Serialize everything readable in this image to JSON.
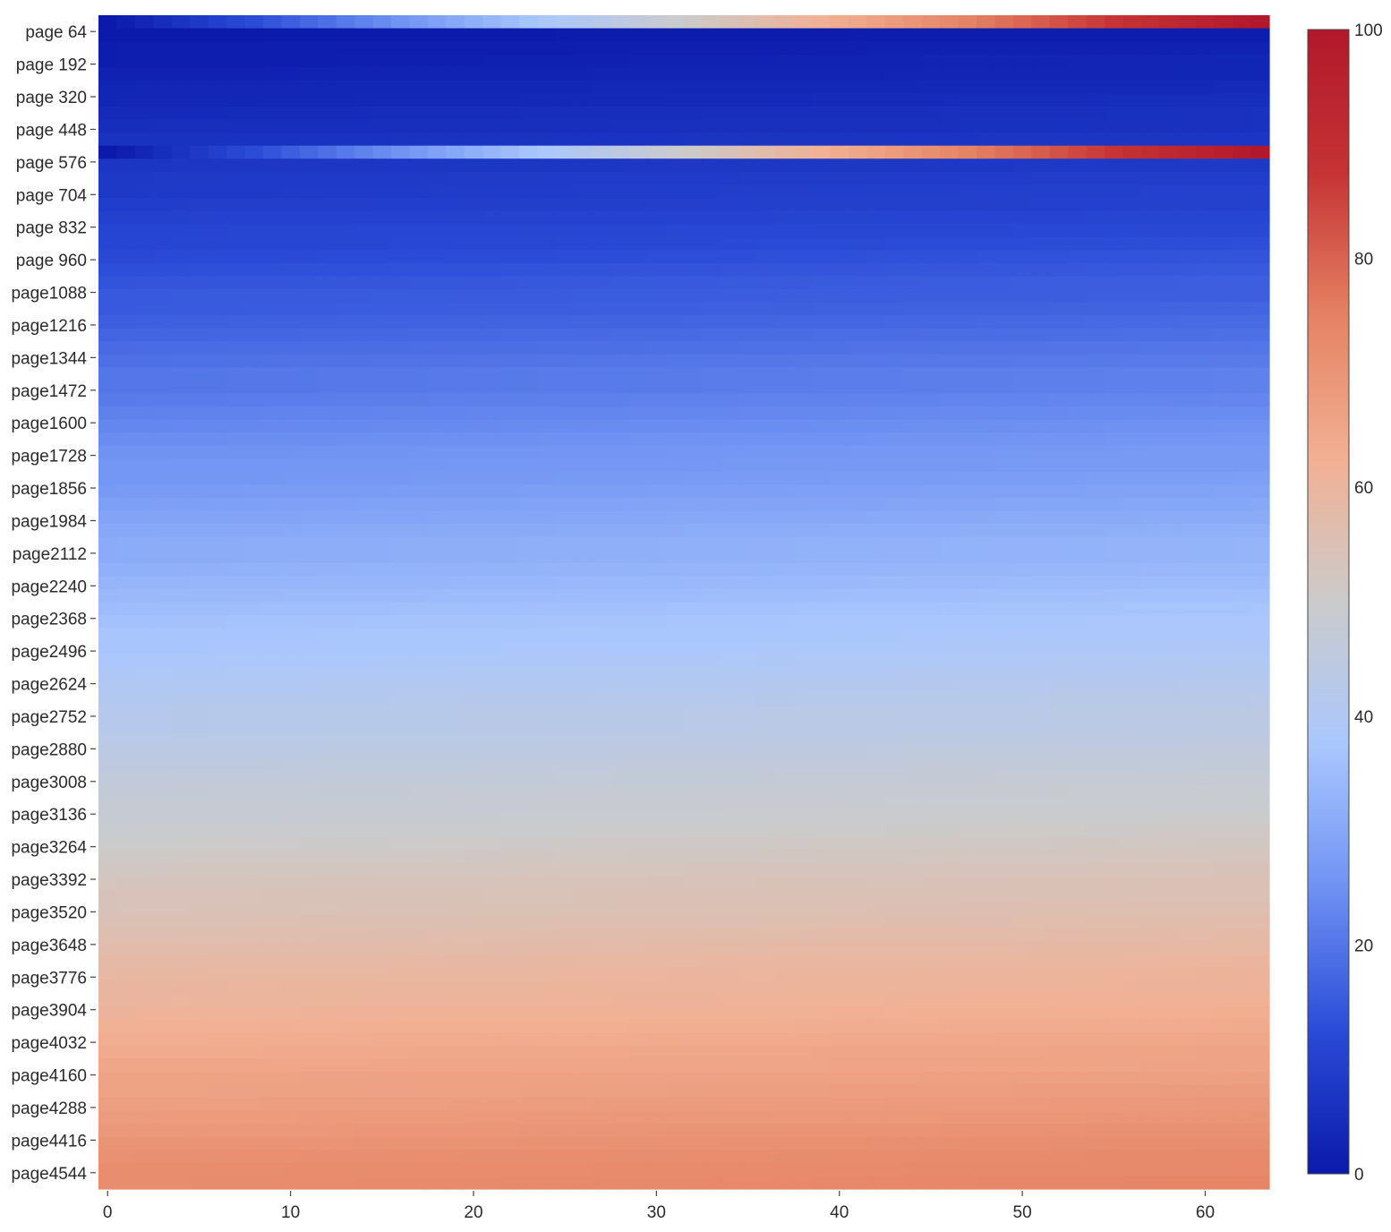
{
  "chart_data": {
    "type": "heatmap",
    "colorscale": [
      "#0b1aab",
      "#2a4bd7",
      "#6f92f3",
      "#aac7fd",
      "#cbcbcb",
      "#f2b093",
      "#e58263",
      "#c53334",
      "#b2182b"
    ],
    "zmin": 0,
    "zmax": 100,
    "colorbar_ticks": [
      0,
      20,
      40,
      60,
      80,
      100
    ],
    "x_ticks": [
      0,
      10,
      20,
      30,
      40,
      50,
      60
    ],
    "x_range": [
      -0.5,
      63.5
    ],
    "y_tick_labels": [
      "page  64",
      "page 192",
      "page 320",
      "page 448",
      "page 576",
      "page 704",
      "page 832",
      "page 960",
      "page1088",
      "page1216",
      "page1344",
      "page1472",
      "page1600",
      "page1728",
      "page1856",
      "page1984",
      "page2112",
      "page2240",
      "page2368",
      "page2496",
      "page2624",
      "page2752",
      "page2880",
      "page3008",
      "page3136",
      "page3264",
      "page3392",
      "page3520",
      "page3648",
      "page3776",
      "page3904",
      "page4032",
      "page4160",
      "page4288",
      "page4416",
      "page4544"
    ],
    "y_tick_pages": [
      64,
      192,
      320,
      448,
      576,
      704,
      832,
      960,
      1088,
      1216,
      1344,
      1472,
      1600,
      1728,
      1856,
      1984,
      2112,
      2240,
      2368,
      2496,
      2624,
      2752,
      2880,
      3008,
      3136,
      3264,
      3392,
      3520,
      3648,
      3776,
      3904,
      4032,
      4160,
      4288,
      4416,
      4544
    ],
    "page_range": [
      0,
      4608
    ],
    "rows_start": [
      0,
      0,
      1,
      1,
      2,
      3,
      3,
      4,
      5,
      6,
      0,
      7,
      8,
      8,
      9,
      10,
      11,
      11,
      12,
      13,
      14,
      15,
      15,
      16,
      17,
      18,
      19,
      20,
      20,
      21,
      22,
      23,
      24,
      25,
      26,
      26,
      27,
      28,
      29,
      30,
      31,
      31,
      32,
      33,
      34,
      35,
      36,
      37,
      37,
      38,
      39,
      40,
      41,
      42,
      42,
      43,
      44,
      45,
      46,
      47,
      48,
      48,
      49,
      50,
      51,
      52,
      53,
      54,
      54,
      55,
      56,
      57,
      58,
      59,
      60,
      60,
      61,
      62,
      63,
      64,
      65,
      66,
      66,
      67,
      68,
      69,
      70,
      71,
      72,
      72
    ],
    "rows_end": [
      100,
      1,
      2,
      3,
      3,
      4,
      5,
      6,
      6,
      7,
      100,
      8,
      9,
      10,
      10,
      11,
      12,
      13,
      14,
      15,
      16,
      16,
      17,
      18,
      19,
      20,
      21,
      22,
      22,
      23,
      24,
      25,
      26,
      27,
      27,
      28,
      29,
      30,
      31,
      32,
      33,
      33,
      34,
      35,
      36,
      37,
      38,
      38,
      39,
      40,
      41,
      42,
      43,
      44,
      44,
      45,
      46,
      47,
      48,
      49,
      49,
      50,
      51,
      52,
      53,
      54,
      55,
      55,
      56,
      57,
      58,
      59,
      60,
      61,
      61,
      62,
      63,
      64,
      65,
      66,
      66,
      67,
      68,
      69,
      70,
      71,
      72,
      73,
      73,
      74
    ]
  }
}
